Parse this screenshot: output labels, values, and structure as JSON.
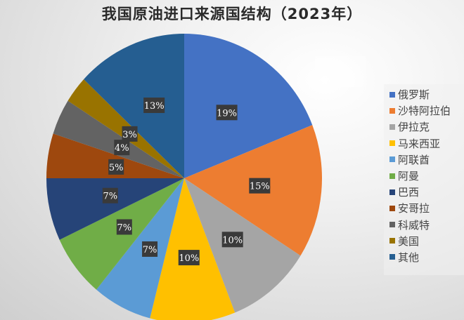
{
  "title": "我国原油进口来源国结构（2023年）",
  "chart_data": {
    "type": "pie",
    "title": "我国原油进口来源国结构（2023年）",
    "categories": [
      "俄罗斯",
      "沙特阿拉伯",
      "伊拉克",
      "马来西亚",
      "阿联酋",
      "阿曼",
      "巴西",
      "安哥拉",
      "科威特",
      "美国",
      "其他"
    ],
    "values": [
      19,
      15,
      10,
      10,
      7,
      7,
      7,
      5,
      4,
      3,
      13
    ],
    "labels": [
      "19%",
      "15%",
      "10%",
      "10%",
      "7%",
      "7%",
      "7%",
      "5%",
      "4%",
      "3%",
      "13%"
    ],
    "colors": [
      "#4472c4",
      "#ed7d31",
      "#a5a5a5",
      "#ffc000",
      "#5b9bd5",
      "#70ad47",
      "#264478",
      "#9e480e",
      "#636363",
      "#997300",
      "#255e91"
    ],
    "legend_position": "right",
    "start_angle": "12 o'clock, clockwise"
  },
  "legend": {
    "items": [
      {
        "label": "俄罗斯",
        "color": "#4472c4"
      },
      {
        "label": "沙特阿拉伯",
        "color": "#ed7d31"
      },
      {
        "label": "伊拉克",
        "color": "#a5a5a5"
      },
      {
        "label": "马来西亚",
        "color": "#ffc000"
      },
      {
        "label": "阿联酋",
        "color": "#5b9bd5"
      },
      {
        "label": "阿曼",
        "color": "#70ad47"
      },
      {
        "label": "巴西",
        "color": "#264478"
      },
      {
        "label": "安哥拉",
        "color": "#9e480e"
      },
      {
        "label": "科威特",
        "color": "#636363"
      },
      {
        "label": "美国",
        "color": "#997300"
      },
      {
        "label": "其他",
        "color": "#255e91"
      }
    ]
  }
}
